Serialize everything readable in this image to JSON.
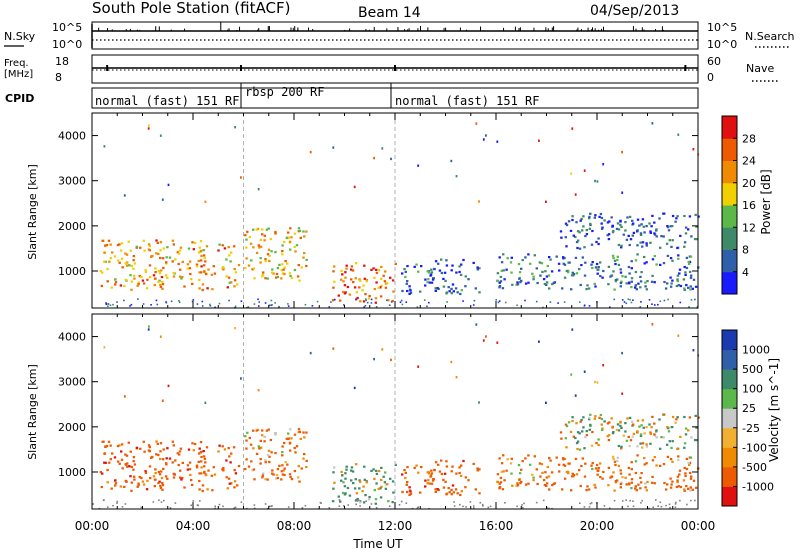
{
  "header": {
    "title": "South Pole Station (fitACF)",
    "beam": "Beam 14",
    "date": "04/Sep/2013"
  },
  "strips": {
    "nsky": {
      "left_label": "N.Sky",
      "left_ticks": [
        "10^5",
        "10^0"
      ],
      "right_label": "N.Search",
      "right_ticks": [
        "10^5",
        "10^0"
      ]
    },
    "freq": {
      "left_label_1": "Freq.",
      "left_label_2": "[MHz]",
      "left_ticks": [
        "18",
        "8"
      ],
      "right_label": "Nave",
      "right_ticks": [
        "60",
        "0"
      ]
    },
    "cpid": {
      "label": "CPID",
      "segments": [
        {
          "label": "normal (fast) 151 RF",
          "start_h": 0,
          "end_h": 6
        },
        {
          "label": "rbsp 200 RF",
          "start_h": 6,
          "end_h": 12
        },
        {
          "label": "normal (fast) 151 RF",
          "start_h": 12,
          "end_h": 24
        }
      ]
    }
  },
  "colors": {
    "power_scale": [
      "#1a1aff",
      "#2e5fa8",
      "#3c8a6a",
      "#5cb84a",
      "#f2d000",
      "#f08a00",
      "#ee5a00",
      "#e01010"
    ],
    "velocity_scale": [
      "#e01010",
      "#ee5a00",
      "#f08a00",
      "#f2b030",
      "#c8c8c8",
      "#5cb84a",
      "#3c8a6a",
      "#2e5fa8",
      "#1a3ab0"
    ],
    "ground_scatter": "#808080"
  },
  "chart_data": [
    {
      "type": "heatmap",
      "panel": "power",
      "ylabel": "Slant Range [km]",
      "xlabel": "",
      "xlim": [
        0,
        24
      ],
      "ylim": [
        180,
        4500
      ],
      "yticks": [
        "1000",
        "2000",
        "3000",
        "4000"
      ],
      "xticks": [
        "00:00",
        "04:00",
        "08:00",
        "12:00",
        "16:00",
        "20:00",
        "00:00"
      ],
      "colorbar": {
        "label": "Power [dB]",
        "range": [
          0,
          32
        ],
        "ticks": [
          "4",
          "8",
          "12",
          "16",
          "20",
          "24",
          "28"
        ]
      },
      "blobs": [
        {
          "t0": 0.3,
          "t1": 5.8,
          "r0": 600,
          "r1": 1700,
          "value": 22
        },
        {
          "t0": 6.0,
          "t1": 8.5,
          "r0": 800,
          "r1": 2000,
          "value": 20
        },
        {
          "t0": 9.5,
          "t1": 12.0,
          "r0": 300,
          "r1": 1200,
          "value": 24
        },
        {
          "t0": 12.2,
          "t1": 15.3,
          "r0": 500,
          "r1": 1300,
          "value": 6
        },
        {
          "t0": 16.0,
          "t1": 24.0,
          "r0": 600,
          "r1": 1400,
          "value": 8
        },
        {
          "t0": 18.5,
          "t1": 24.0,
          "r0": 1500,
          "r1": 2300,
          "value": 5
        }
      ]
    },
    {
      "type": "heatmap",
      "panel": "velocity",
      "ylabel": "Slant Range [km]",
      "xlabel": "Time UT",
      "xlim": [
        0,
        24
      ],
      "ylim": [
        180,
        4500
      ],
      "yticks": [
        "1000",
        "2000",
        "3000",
        "4000"
      ],
      "xticks": [
        "00:00",
        "04:00",
        "08:00",
        "12:00",
        "16:00",
        "20:00",
        "00:00"
      ],
      "colorbar": {
        "label": "Velocity [m s^-1]",
        "ticks": [
          "1000",
          "500",
          "100",
          "25",
          "-25",
          "-100",
          "-500",
          "-1000"
        ]
      },
      "blobs": [
        {
          "t0": 0.3,
          "t1": 5.8,
          "r0": 600,
          "r1": 1700,
          "value": -300
        },
        {
          "t0": 6.0,
          "t1": 8.5,
          "r0": 800,
          "r1": 2000,
          "value": -200
        },
        {
          "t0": 9.5,
          "t1": 12.0,
          "r0": 300,
          "r1": 1200,
          "value": 150
        },
        {
          "t0": 12.2,
          "t1": 15.3,
          "r0": 500,
          "r1": 1300,
          "value": -300
        },
        {
          "t0": 16.0,
          "t1": 24.0,
          "r0": 600,
          "r1": 1400,
          "value": -200
        },
        {
          "t0": 18.5,
          "t1": 24.0,
          "r0": 1500,
          "r1": 2300,
          "value": 0
        }
      ]
    }
  ]
}
